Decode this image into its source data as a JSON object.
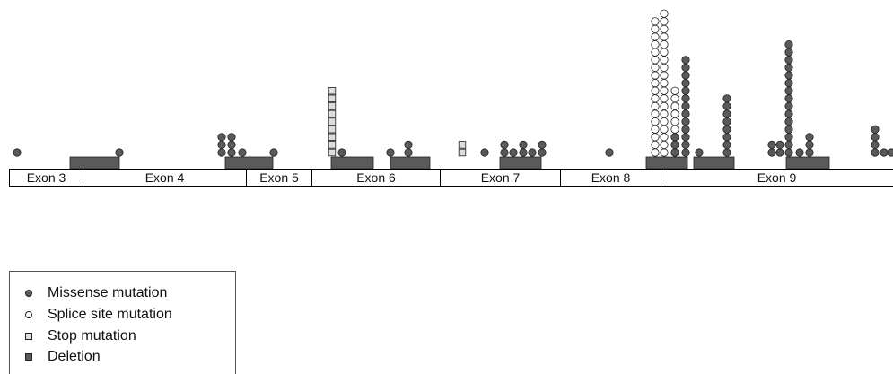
{
  "exons": [
    {
      "label": "Exon 3"
    },
    {
      "label": "Exon 4"
    },
    {
      "label": "Exon 5"
    },
    {
      "label": "Exon 6"
    },
    {
      "label": "Exon 7"
    },
    {
      "label": "Exon 8"
    },
    {
      "label": "Exon 9"
    }
  ],
  "legend": [
    {
      "label": "Missense mutation",
      "symbol": "filled-circle",
      "color": "#5a5a5a"
    },
    {
      "label": "Splice site mutation",
      "symbol": "open-circle",
      "color": "#ffffff"
    },
    {
      "label": "Stop mutation",
      "symbol": "open-square",
      "color": "#dddddd"
    },
    {
      "label": "Deletion",
      "symbol": "filled-square",
      "color": "#5a5a5a"
    }
  ],
  "colors": {
    "missense": "#5a5a5a",
    "splice": "#ffffff",
    "stop": "#dddddd",
    "deletion": "#5a5a5a",
    "outline": "#222222"
  }
}
